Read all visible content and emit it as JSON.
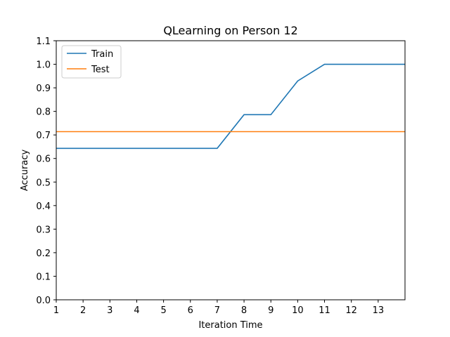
{
  "chart_data": {
    "type": "line",
    "title": "QLearning on Person 12",
    "xlabel": "Iteration Time",
    "ylabel": "Accuracy",
    "xlim": [
      1,
      14
    ],
    "ylim": [
      0.0,
      1.1
    ],
    "xticks": [
      1,
      2,
      3,
      4,
      5,
      6,
      7,
      8,
      9,
      10,
      11,
      12,
      13
    ],
    "yticks": [
      0.0,
      0.1,
      0.2,
      0.3,
      0.4,
      0.5,
      0.6,
      0.7,
      0.8,
      0.9,
      1.0,
      1.1
    ],
    "xtick_labels": [
      "1",
      "2",
      "3",
      "4",
      "5",
      "6",
      "7",
      "8",
      "9",
      "10",
      "11",
      "12",
      "13"
    ],
    "ytick_labels": [
      "0.0",
      "0.1",
      "0.2",
      "0.3",
      "0.4",
      "0.5",
      "0.6",
      "0.7",
      "0.8",
      "0.9",
      "1.0",
      "1.1"
    ],
    "grid": false,
    "legend_position": "top-left",
    "x": [
      1,
      2,
      3,
      4,
      5,
      6,
      7,
      8,
      9,
      10,
      11,
      12,
      13,
      14
    ],
    "series": [
      {
        "name": "Train",
        "color": "#1f77b4",
        "values": [
          0.643,
          0.643,
          0.643,
          0.643,
          0.643,
          0.643,
          0.643,
          0.786,
          0.786,
          0.929,
          1.0,
          1.0,
          1.0,
          1.0
        ]
      },
      {
        "name": "Test",
        "color": "#ff7f0e",
        "values": [
          0.714,
          0.714,
          0.714,
          0.714,
          0.714,
          0.714,
          0.714,
          0.714,
          0.714,
          0.714,
          0.714,
          0.714,
          0.714,
          0.714
        ]
      }
    ]
  }
}
